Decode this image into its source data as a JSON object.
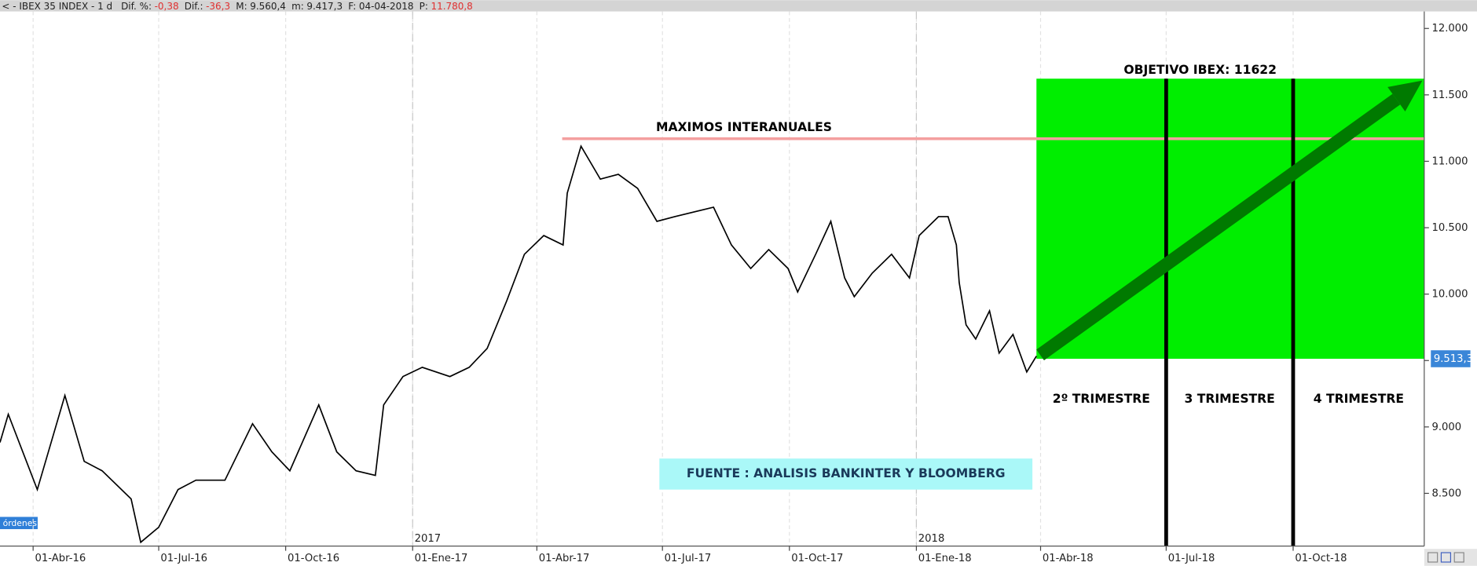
{
  "header": {
    "name": "< - IBEX 35 INDEX -  1 d",
    "fields": [
      {
        "label": "Dif. %:",
        "value": "-0,38",
        "color": "#e03030"
      },
      {
        "label": "Dif.:",
        "value": "-36,3",
        "color": "#e03030"
      },
      {
        "label": "M:",
        "value": "9.560,4",
        "color": "#222222"
      },
      {
        "label": "m:",
        "value": "9.417,3",
        "color": "#222222"
      },
      {
        "label": "F:",
        "value": "04-04-2018",
        "color": "#222222"
      },
      {
        "label": "P:",
        "value": "11.780,8",
        "color": "#e03030"
      }
    ]
  },
  "ui": {
    "orders_tab": "órdenes"
  },
  "chart_data": {
    "type": "line",
    "color": "#000000",
    "grid": true,
    "x": [
      "2016-03-08",
      "2016-03-14",
      "2016-04-04",
      "2016-04-24",
      "2016-05-08",
      "2016-05-21",
      "2016-06-11",
      "2016-06-18",
      "2016-07-01",
      "2016-07-15",
      "2016-07-28",
      "2016-08-18",
      "2016-09-07",
      "2016-09-21",
      "2016-10-04",
      "2016-10-25",
      "2016-11-07",
      "2016-11-21",
      "2016-12-05",
      "2016-12-11",
      "2016-12-25",
      "2017-01-08",
      "2017-01-28",
      "2017-02-11",
      "2017-02-24",
      "2017-03-10",
      "2017-03-23",
      "2017-04-06",
      "2017-04-20",
      "2017-04-23",
      "2017-05-03",
      "2017-05-17",
      "2017-05-30",
      "2017-06-13",
      "2017-06-27",
      "2017-07-10",
      "2017-08-07",
      "2017-08-20",
      "2017-09-03",
      "2017-09-16",
      "2017-09-30",
      "2017-10-07",
      "2017-10-20",
      "2017-10-31",
      "2017-11-10",
      "2017-11-17",
      "2017-11-30",
      "2017-12-14",
      "2017-12-27",
      "2018-01-03",
      "2018-01-17",
      "2018-01-24",
      "2018-01-30",
      "2018-02-01",
      "2018-02-06",
      "2018-02-13",
      "2018-02-23",
      "2018-03-02",
      "2018-03-12",
      "2018-03-22",
      "2018-03-29"
    ],
    "values": [
      8883,
      9095,
      8528,
      9237,
      8741,
      8670,
      8458,
      8131,
      8245,
      8528,
      8599,
      8599,
      9024,
      8812,
      8670,
      9166,
      8812,
      8670,
      8635,
      9166,
      9379,
      9449,
      9379,
      9449,
      9591,
      9945,
      10300,
      10441,
      10370,
      10760,
      11114,
      10866,
      10902,
      10796,
      10548,
      10583,
      10654,
      10370,
      10193,
      10335,
      10193,
      10016,
      10300,
      10548,
      10122,
      9981,
      10158,
      10300,
      10122,
      10441,
      10583,
      10583,
      10370,
      10087,
      9768,
      9662,
      9874,
      9556,
      9697,
      9414,
      9534
    ],
    "xlim": [
      "2016-03-08",
      "2019-01-04"
    ],
    "xticks": [
      {
        "value": "2016-04-01",
        "label": "01-Abr-16"
      },
      {
        "value": "2016-07-01",
        "label": "01-Jul-16"
      },
      {
        "value": "2016-10-01",
        "label": "01-Oct-16"
      },
      {
        "value": "2017-01-01",
        "label": "01-Ene-17"
      },
      {
        "value": "2017-04-01",
        "label": "01-Abr-17"
      },
      {
        "value": "2017-07-01",
        "label": "01-Jul-17"
      },
      {
        "value": "2017-10-01",
        "label": "01-Oct-17"
      },
      {
        "value": "2018-01-01",
        "label": "01-Ene-18"
      },
      {
        "value": "2018-04-01",
        "label": "01-Abr-18"
      },
      {
        "value": "2018-07-01",
        "label": "01-Jul-18"
      },
      {
        "value": "2018-10-01",
        "label": "01-Oct-18"
      }
    ],
    "year_markers": [
      {
        "value": "2017-01-01",
        "label": "2017"
      },
      {
        "value": "2018-01-01",
        "label": "2018"
      }
    ],
    "ylim": [
      8103,
      12128
    ],
    "yticks": [
      {
        "value": 8500,
        "label": "8.500"
      },
      {
        "value": 9000,
        "label": "9.000"
      },
      {
        "value": 9500,
        "label": "9.500"
      },
      {
        "value": 10000,
        "label": "10.000"
      },
      {
        "value": 10500,
        "label": "10.500"
      },
      {
        "value": 11000,
        "label": "11.000"
      },
      {
        "value": 11500,
        "label": "11.500"
      },
      {
        "value": 12000,
        "label": "12.000"
      }
    ],
    "reference_line": {
      "label": "MAXIMOS INTERANUALES",
      "value": 11170,
      "color": "#f4a0a0"
    },
    "target": {
      "label": "OBJETIVO IBEX: 11622",
      "value": 11622,
      "color": "#00ee00",
      "arrow_color": "#007a00"
    },
    "last_price": {
      "value": 9513.3,
      "label": "9.513,3"
    },
    "quarter_lines": [
      "2018-07-01",
      "2018-10-01"
    ],
    "quarters": [
      "2º TRIMESTRE",
      "3 TRIMESTRE",
      "4 TRIMESTRE"
    ],
    "source": "FUENTE : ANALISIS BANKINTER Y BLOOMBERG"
  }
}
